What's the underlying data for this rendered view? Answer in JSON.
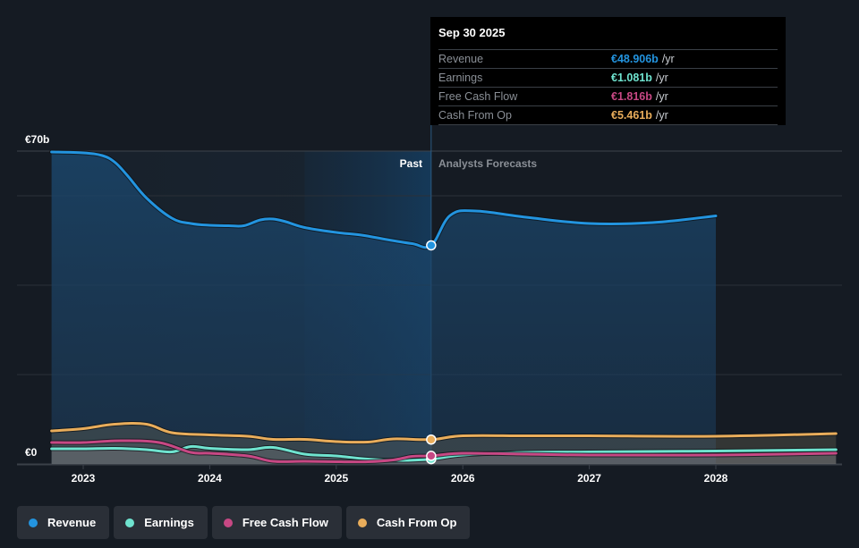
{
  "chart_data": {
    "type": "area",
    "title": "",
    "xlabel": "",
    "ylabel": "",
    "currency": "€",
    "ylim": [
      0,
      70
    ],
    "y_tick_labels": [
      "€0",
      "€70b"
    ],
    "y_gridlines": [
      0,
      20,
      40,
      60,
      70
    ],
    "x_ticks": [
      2023,
      2024,
      2025,
      2026,
      2027,
      2028
    ],
    "x_range": [
      2022.75,
      2028.95
    ],
    "past_end": 2025.75,
    "highlight_band": [
      2024.75,
      2025.75
    ],
    "regions": {
      "past": "Past",
      "forecast": "Analysts Forecasts"
    },
    "series": [
      {
        "name": "Revenue",
        "color": "#2394df",
        "points": [
          [
            2022.75,
            69.8
          ],
          [
            2023.0,
            69.6
          ],
          [
            2023.15,
            69.0
          ],
          [
            2023.25,
            67.5
          ],
          [
            2023.35,
            64.5
          ],
          [
            2023.5,
            59.5
          ],
          [
            2023.7,
            55
          ],
          [
            2023.85,
            53.8
          ],
          [
            2024.0,
            53.4
          ],
          [
            2024.15,
            53.3
          ],
          [
            2024.27,
            53.3
          ],
          [
            2024.4,
            54.6
          ],
          [
            2024.5,
            54.8
          ],
          [
            2024.6,
            54.2
          ],
          [
            2024.75,
            52.9
          ],
          [
            2025.0,
            51.8
          ],
          [
            2025.2,
            51.2
          ],
          [
            2025.4,
            50.2
          ],
          [
            2025.6,
            49.3
          ],
          [
            2025.75,
            48.906
          ],
          [
            2025.9,
            55.6
          ],
          [
            2026.1,
            56.6
          ],
          [
            2026.5,
            55.2
          ],
          [
            2027.0,
            53.8
          ],
          [
            2027.5,
            54.0
          ],
          [
            2028.0,
            55.5
          ]
        ]
      },
      {
        "name": "Earnings",
        "color": "#6fe3cf",
        "points": [
          [
            2022.75,
            3.4
          ],
          [
            2023.0,
            3.4
          ],
          [
            2023.25,
            3.5
          ],
          [
            2023.5,
            3.2
          ],
          [
            2023.7,
            2.7
          ],
          [
            2023.85,
            3.9
          ],
          [
            2024.0,
            3.5
          ],
          [
            2024.3,
            3.2
          ],
          [
            2024.5,
            3.7
          ],
          [
            2024.75,
            2.2
          ],
          [
            2025.0,
            1.8
          ],
          [
            2025.25,
            1.1
          ],
          [
            2025.5,
            0.8
          ],
          [
            2025.75,
            1.081
          ],
          [
            2026.0,
            2.0
          ],
          [
            2026.5,
            2.6
          ],
          [
            2027.0,
            2.7
          ],
          [
            2028.0,
            2.9
          ],
          [
            2028.95,
            3.2
          ]
        ]
      },
      {
        "name": "Free Cash Flow",
        "color": "#c74884",
        "points": [
          [
            2022.75,
            4.8
          ],
          [
            2023.0,
            4.8
          ],
          [
            2023.3,
            5.2
          ],
          [
            2023.6,
            4.8
          ],
          [
            2023.85,
            2.6
          ],
          [
            2024.0,
            2.4
          ],
          [
            2024.3,
            1.8
          ],
          [
            2024.5,
            0.6
          ],
          [
            2024.75,
            0.6
          ],
          [
            2025.0,
            0.5
          ],
          [
            2025.25,
            0.5
          ],
          [
            2025.45,
            0.9
          ],
          [
            2025.6,
            1.7
          ],
          [
            2025.75,
            1.816
          ],
          [
            2026.0,
            2.4
          ],
          [
            2026.5,
            2.2
          ],
          [
            2027.0,
            2.0
          ],
          [
            2028.0,
            2.0
          ],
          [
            2028.95,
            2.4
          ]
        ]
      },
      {
        "name": "Cash From Op",
        "color": "#e9ad5b",
        "points": [
          [
            2022.75,
            7.4
          ],
          [
            2023.0,
            7.9
          ],
          [
            2023.25,
            8.9
          ],
          [
            2023.5,
            8.9
          ],
          [
            2023.7,
            7.0
          ],
          [
            2024.0,
            6.5
          ],
          [
            2024.3,
            6.2
          ],
          [
            2024.5,
            5.5
          ],
          [
            2024.75,
            5.5
          ],
          [
            2025.0,
            5.0
          ],
          [
            2025.25,
            4.9
          ],
          [
            2025.45,
            5.6
          ],
          [
            2025.75,
            5.461
          ],
          [
            2026.0,
            6.3
          ],
          [
            2026.5,
            6.3
          ],
          [
            2027.0,
            6.3
          ],
          [
            2028.0,
            6.2
          ],
          [
            2028.95,
            6.8
          ]
        ]
      }
    ]
  },
  "tooltip": {
    "date": "Sep 30 2025",
    "rows": [
      {
        "label": "Revenue",
        "value": "€48.906b",
        "unit": "/yr",
        "color": "#2394df"
      },
      {
        "label": "Earnings",
        "value": "€1.081b",
        "unit": "/yr",
        "color": "#6fe3cf"
      },
      {
        "label": "Free Cash Flow",
        "value": "€1.816b",
        "unit": "/yr",
        "color": "#c74884"
      },
      {
        "label": "Cash From Op",
        "value": "€5.461b",
        "unit": "/yr",
        "color": "#e9ad5b"
      }
    ]
  },
  "legend": [
    {
      "label": "Revenue",
      "color": "#2394df"
    },
    {
      "label": "Earnings",
      "color": "#6fe3cf"
    },
    {
      "label": "Free Cash Flow",
      "color": "#c74884"
    },
    {
      "label": "Cash From Op",
      "color": "#e9ad5b"
    }
  ]
}
